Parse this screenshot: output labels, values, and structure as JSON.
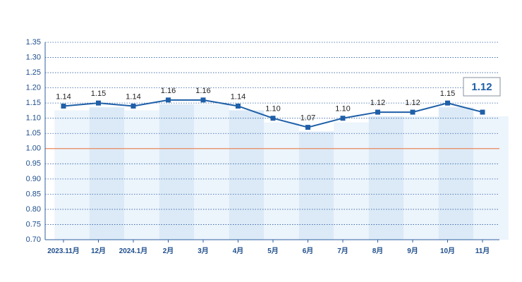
{
  "chart_data": {
    "type": "line",
    "categories": [
      "2023.11月",
      "12月",
      "2024.1月",
      "2月",
      "3月",
      "4月",
      "5月",
      "6月",
      "7月",
      "8月",
      "9月",
      "10月",
      "11月"
    ],
    "values": [
      1.14,
      1.15,
      1.14,
      1.16,
      1.16,
      1.14,
      1.1,
      1.07,
      1.1,
      1.12,
      1.12,
      1.15,
      1.12
    ],
    "data_labels": [
      "1.14",
      "1.15",
      "1.14",
      "1.16",
      "1.16",
      "1.14",
      "1.10",
      "1.07",
      "1.10",
      "1.12",
      "1.12",
      "1.15",
      ""
    ],
    "y_ticks": [
      "1.35",
      "1.30",
      "1.25",
      "1.20",
      "1.15",
      "1.10",
      "1.05",
      "1.00",
      "0.95",
      "0.90",
      "0.85",
      "0.80",
      "0.75",
      "0.70"
    ],
    "ylim": [
      0.7,
      1.35
    ],
    "reference_line": 1.0,
    "latest_badge": "1.12",
    "grid": true,
    "colors": {
      "line": "#1f5fa8",
      "marker": "#1f5fa8",
      "reference": "#e8895a",
      "band_light": "#e9f2fb",
      "band_dark": "#d6e6f6",
      "badge_text": "#1f5fa8"
    }
  }
}
